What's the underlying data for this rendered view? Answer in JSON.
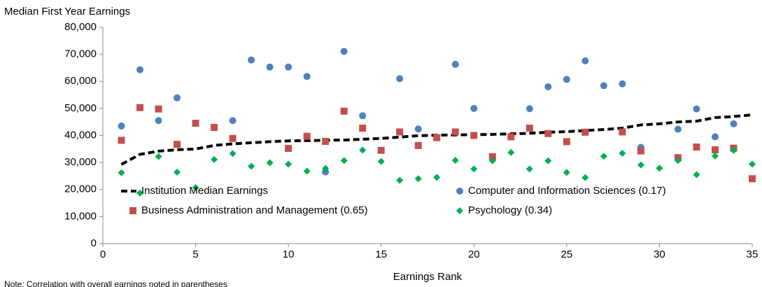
{
  "chart_data": {
    "type": "scatter",
    "y_label": "Median First Year Earnings",
    "x_label": "Earnings Rank",
    "note": "Note: Correlation with overall earnings noted in parentheses",
    "x": [
      1,
      2,
      3,
      4,
      5,
      6,
      7,
      8,
      9,
      10,
      11,
      12,
      13,
      14,
      15,
      16,
      17,
      18,
      19,
      20,
      21,
      22,
      23,
      24,
      25,
      26,
      27,
      28,
      29,
      30,
      31,
      32,
      33,
      34,
      35
    ],
    "xlim": [
      0,
      35
    ],
    "xticks": [
      0,
      5,
      10,
      15,
      20,
      25,
      30,
      35
    ],
    "ylim": [
      0,
      80000
    ],
    "yticks": [
      {
        "value": 0,
        "label": "0"
      },
      {
        "value": 10000,
        "label": "10,000"
      },
      {
        "value": 20000,
        "label": "20,000"
      },
      {
        "value": 30000,
        "label": "30,000"
      },
      {
        "value": 40000,
        "label": "40,000"
      },
      {
        "value": 50000,
        "label": "50,000"
      },
      {
        "value": 60000,
        "label": "60,000"
      },
      {
        "value": 70000,
        "label": "70,000"
      },
      {
        "value": 80000,
        "label": "80,000"
      }
    ],
    "grid": false,
    "legend": "bottom",
    "series": [
      {
        "name": "Institution Median Earnings",
        "color": "#000000",
        "mode": "line",
        "dashed": true,
        "values": [
          29300,
          33000,
          34200,
          34700,
          35000,
          36300,
          36900,
          37300,
          37700,
          38000,
          38100,
          38200,
          38300,
          38600,
          38900,
          39400,
          39900,
          40100,
          40200,
          40300,
          40400,
          40600,
          40800,
          41200,
          41400,
          41800,
          42200,
          42700,
          43900,
          44300,
          45000,
          45300,
          46600,
          47000,
          47600
        ]
      },
      {
        "name": "Computer and Information Sciences (0.17)",
        "color": "#4f81bd",
        "mode": "marker",
        "marker": "circle",
        "values": [
          43500,
          64300,
          45500,
          53900,
          null,
          null,
          45500,
          67900,
          65300,
          65300,
          61800,
          26500,
          71100,
          47300,
          null,
          61000,
          42400,
          null,
          66300,
          50000,
          null,
          null,
          49900,
          58000,
          60700,
          67600,
          58400,
          59100,
          35600,
          null,
          42300,
          49800,
          39500,
          44300,
          null
        ]
      },
      {
        "name": "Business Administration and Management (0.65)",
        "color": "#c0504d",
        "mode": "marker",
        "marker": "square",
        "values": [
          38200,
          50300,
          49800,
          36700,
          44500,
          43000,
          38900,
          null,
          null,
          35200,
          39700,
          37800,
          49000,
          42700,
          34500,
          41300,
          36300,
          39200,
          41300,
          40000,
          32100,
          39500,
          42700,
          40700,
          37700,
          41200,
          null,
          41300,
          34300,
          null,
          31800,
          35700,
          34700,
          35300,
          24000
        ]
      },
      {
        "name": "Psychology (0.34)",
        "color": "#00b050",
        "mode": "marker",
        "marker": "diamond",
        "values": [
          26200,
          18700,
          32200,
          26400,
          20700,
          31100,
          33300,
          28600,
          29900,
          29400,
          26800,
          27800,
          30700,
          34600,
          30400,
          23400,
          24000,
          24500,
          30800,
          27600,
          30600,
          33700,
          27600,
          30600,
          26300,
          24400,
          32300,
          33400,
          29100,
          27900,
          30700,
          25500,
          32400,
          34500,
          29400
        ]
      }
    ]
  }
}
